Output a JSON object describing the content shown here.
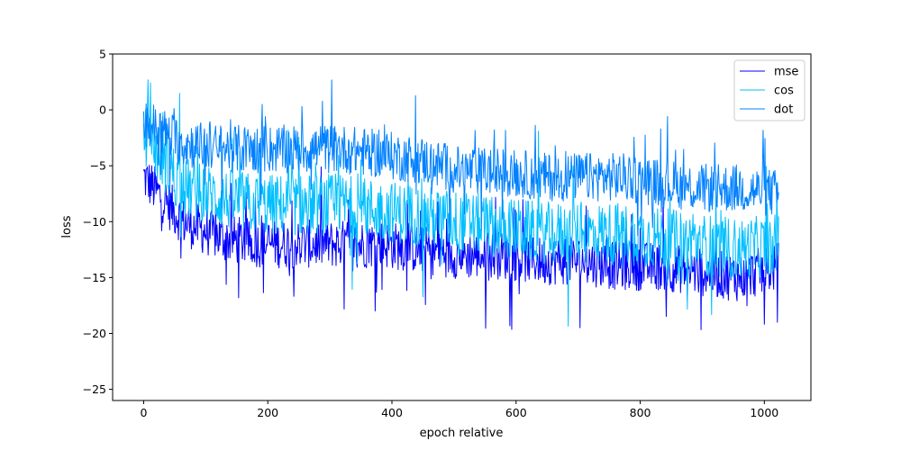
{
  "chart_data": {
    "type": "line",
    "title": "",
    "xlabel": "epoch relative",
    "ylabel": "loss",
    "xlim": [
      -50,
      1075
    ],
    "ylim": [
      -26,
      5
    ],
    "xticks": [
      0,
      200,
      400,
      600,
      800,
      1000
    ],
    "yticks": [
      5,
      0,
      -5,
      -10,
      -15,
      -20,
      -25
    ],
    "xtick_labels": [
      "0",
      "200",
      "400",
      "600",
      "800",
      "1000"
    ],
    "ytick_labels": [
      "5",
      "0",
      "−5",
      "−10",
      "−15",
      "−20",
      "−25"
    ],
    "grid": false,
    "legend_position": "top-right",
    "n_points": 1024,
    "series": [
      {
        "name": "mse",
        "color": "#0000ff",
        "x": [
          0,
          64,
          128,
          192,
          256,
          320,
          384,
          448,
          512,
          576,
          640,
          704,
          768,
          832,
          896,
          960,
          1023
        ],
        "values": [
          -6.0,
          -10.0,
          -11.5,
          -12.0,
          -12.0,
          -12.0,
          -12.0,
          -12.5,
          -13.0,
          -13.0,
          -13.5,
          -13.5,
          -14.0,
          -14.0,
          -14.5,
          -15.0,
          -14.0
        ]
      },
      {
        "name": "cos",
        "color": "#00bfff",
        "x": [
          0,
          64,
          128,
          192,
          256,
          320,
          384,
          448,
          512,
          576,
          640,
          704,
          768,
          832,
          896,
          960,
          1023
        ],
        "values": [
          -2.0,
          -7.0,
          -8.0,
          -8.5,
          -8.5,
          -8.5,
          -9.0,
          -9.5,
          -10.0,
          -10.5,
          -11.0,
          -11.0,
          -11.0,
          -11.5,
          -12.0,
          -12.5,
          -12.0
        ]
      },
      {
        "name": "dot",
        "color": "#0080ff",
        "x": [
          0,
          64,
          128,
          192,
          256,
          320,
          384,
          448,
          512,
          576,
          640,
          704,
          768,
          832,
          896,
          960,
          1023
        ],
        "values": [
          -1.0,
          -3.0,
          -3.5,
          -3.5,
          -3.5,
          -3.5,
          -4.0,
          -4.5,
          -5.5,
          -5.5,
          -6.0,
          -6.0,
          -6.0,
          -6.5,
          -7.0,
          -7.0,
          -7.5
        ]
      }
    ]
  }
}
